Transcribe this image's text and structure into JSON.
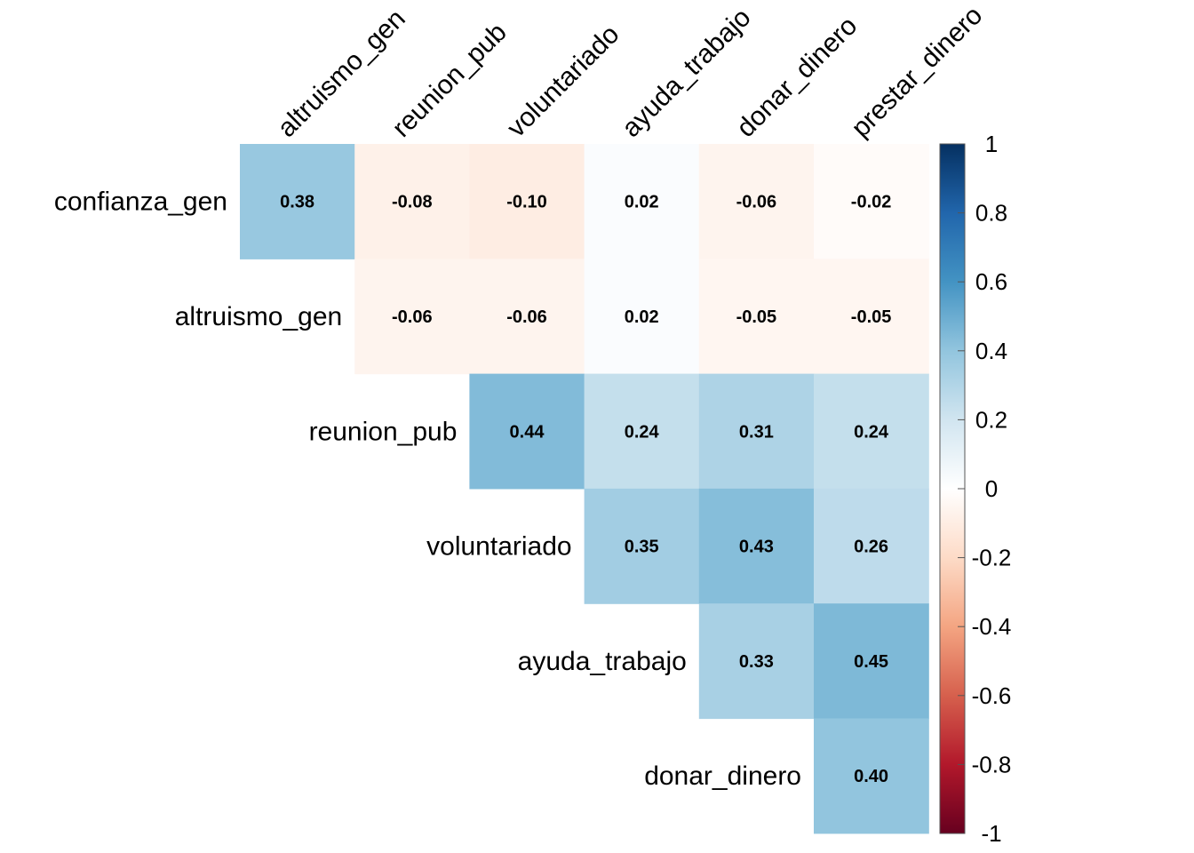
{
  "chart_data": {
    "type": "heatmap",
    "subtype": "correlation-upper-triangle",
    "columns": [
      "altruismo_gen",
      "reunion_pub",
      "voluntariado",
      "ayuda_trabajo",
      "donar_dinero",
      "prestar_dinero"
    ],
    "rows": [
      "confianza_gen",
      "altruismo_gen",
      "reunion_pub",
      "voluntariado",
      "ayuda_trabajo",
      "donar_dinero"
    ],
    "cells": [
      {
        "row": 0,
        "col": 0,
        "value": 0.38,
        "label": "0.38"
      },
      {
        "row": 0,
        "col": 1,
        "value": -0.08,
        "label": "-0.08"
      },
      {
        "row": 0,
        "col": 2,
        "value": -0.1,
        "label": "-0.10"
      },
      {
        "row": 0,
        "col": 3,
        "value": 0.02,
        "label": "0.02"
      },
      {
        "row": 0,
        "col": 4,
        "value": -0.06,
        "label": "-0.06"
      },
      {
        "row": 0,
        "col": 5,
        "value": -0.02,
        "label": "-0.02"
      },
      {
        "row": 1,
        "col": 1,
        "value": -0.06,
        "label": "-0.06"
      },
      {
        "row": 1,
        "col": 2,
        "value": -0.06,
        "label": "-0.06"
      },
      {
        "row": 1,
        "col": 3,
        "value": 0.02,
        "label": "0.02"
      },
      {
        "row": 1,
        "col": 4,
        "value": -0.05,
        "label": "-0.05"
      },
      {
        "row": 1,
        "col": 5,
        "value": -0.05,
        "label": "-0.05"
      },
      {
        "row": 2,
        "col": 2,
        "value": 0.44,
        "label": "0.44"
      },
      {
        "row": 2,
        "col": 3,
        "value": 0.24,
        "label": "0.24"
      },
      {
        "row": 2,
        "col": 4,
        "value": 0.31,
        "label": "0.31"
      },
      {
        "row": 2,
        "col": 5,
        "value": 0.24,
        "label": "0.24"
      },
      {
        "row": 3,
        "col": 3,
        "value": 0.35,
        "label": "0.35"
      },
      {
        "row": 3,
        "col": 4,
        "value": 0.43,
        "label": "0.43"
      },
      {
        "row": 3,
        "col": 5,
        "value": 0.26,
        "label": "0.26"
      },
      {
        "row": 4,
        "col": 4,
        "value": 0.33,
        "label": "0.33"
      },
      {
        "row": 4,
        "col": 5,
        "value": 0.45,
        "label": "0.45"
      },
      {
        "row": 5,
        "col": 5,
        "value": 0.4,
        "label": "0.40"
      }
    ],
    "color_scale": {
      "range": [
        -1,
        1
      ],
      "ticks": [
        {
          "value": 1,
          "label": "1"
        },
        {
          "value": 0.8,
          "label": "0.8"
        },
        {
          "value": 0.6,
          "label": "0.6"
        },
        {
          "value": 0.4,
          "label": "0.4"
        },
        {
          "value": 0.2,
          "label": "0.2"
        },
        {
          "value": 0,
          "label": "0"
        },
        {
          "value": -0.2,
          "label": "-0.2"
        },
        {
          "value": -0.4,
          "label": "-0.4"
        },
        {
          "value": -0.6,
          "label": "-0.6"
        },
        {
          "value": -0.8,
          "label": "-0.8"
        },
        {
          "value": -1,
          "label": "-1"
        }
      ],
      "palette": [
        "#67001F",
        "#B2182B",
        "#D6604D",
        "#F4A582",
        "#FDDBC7",
        "#FFFFFF",
        "#D1E5F0",
        "#92C5DE",
        "#4393C3",
        "#2166AC",
        "#053061"
      ]
    },
    "legend": "right"
  }
}
